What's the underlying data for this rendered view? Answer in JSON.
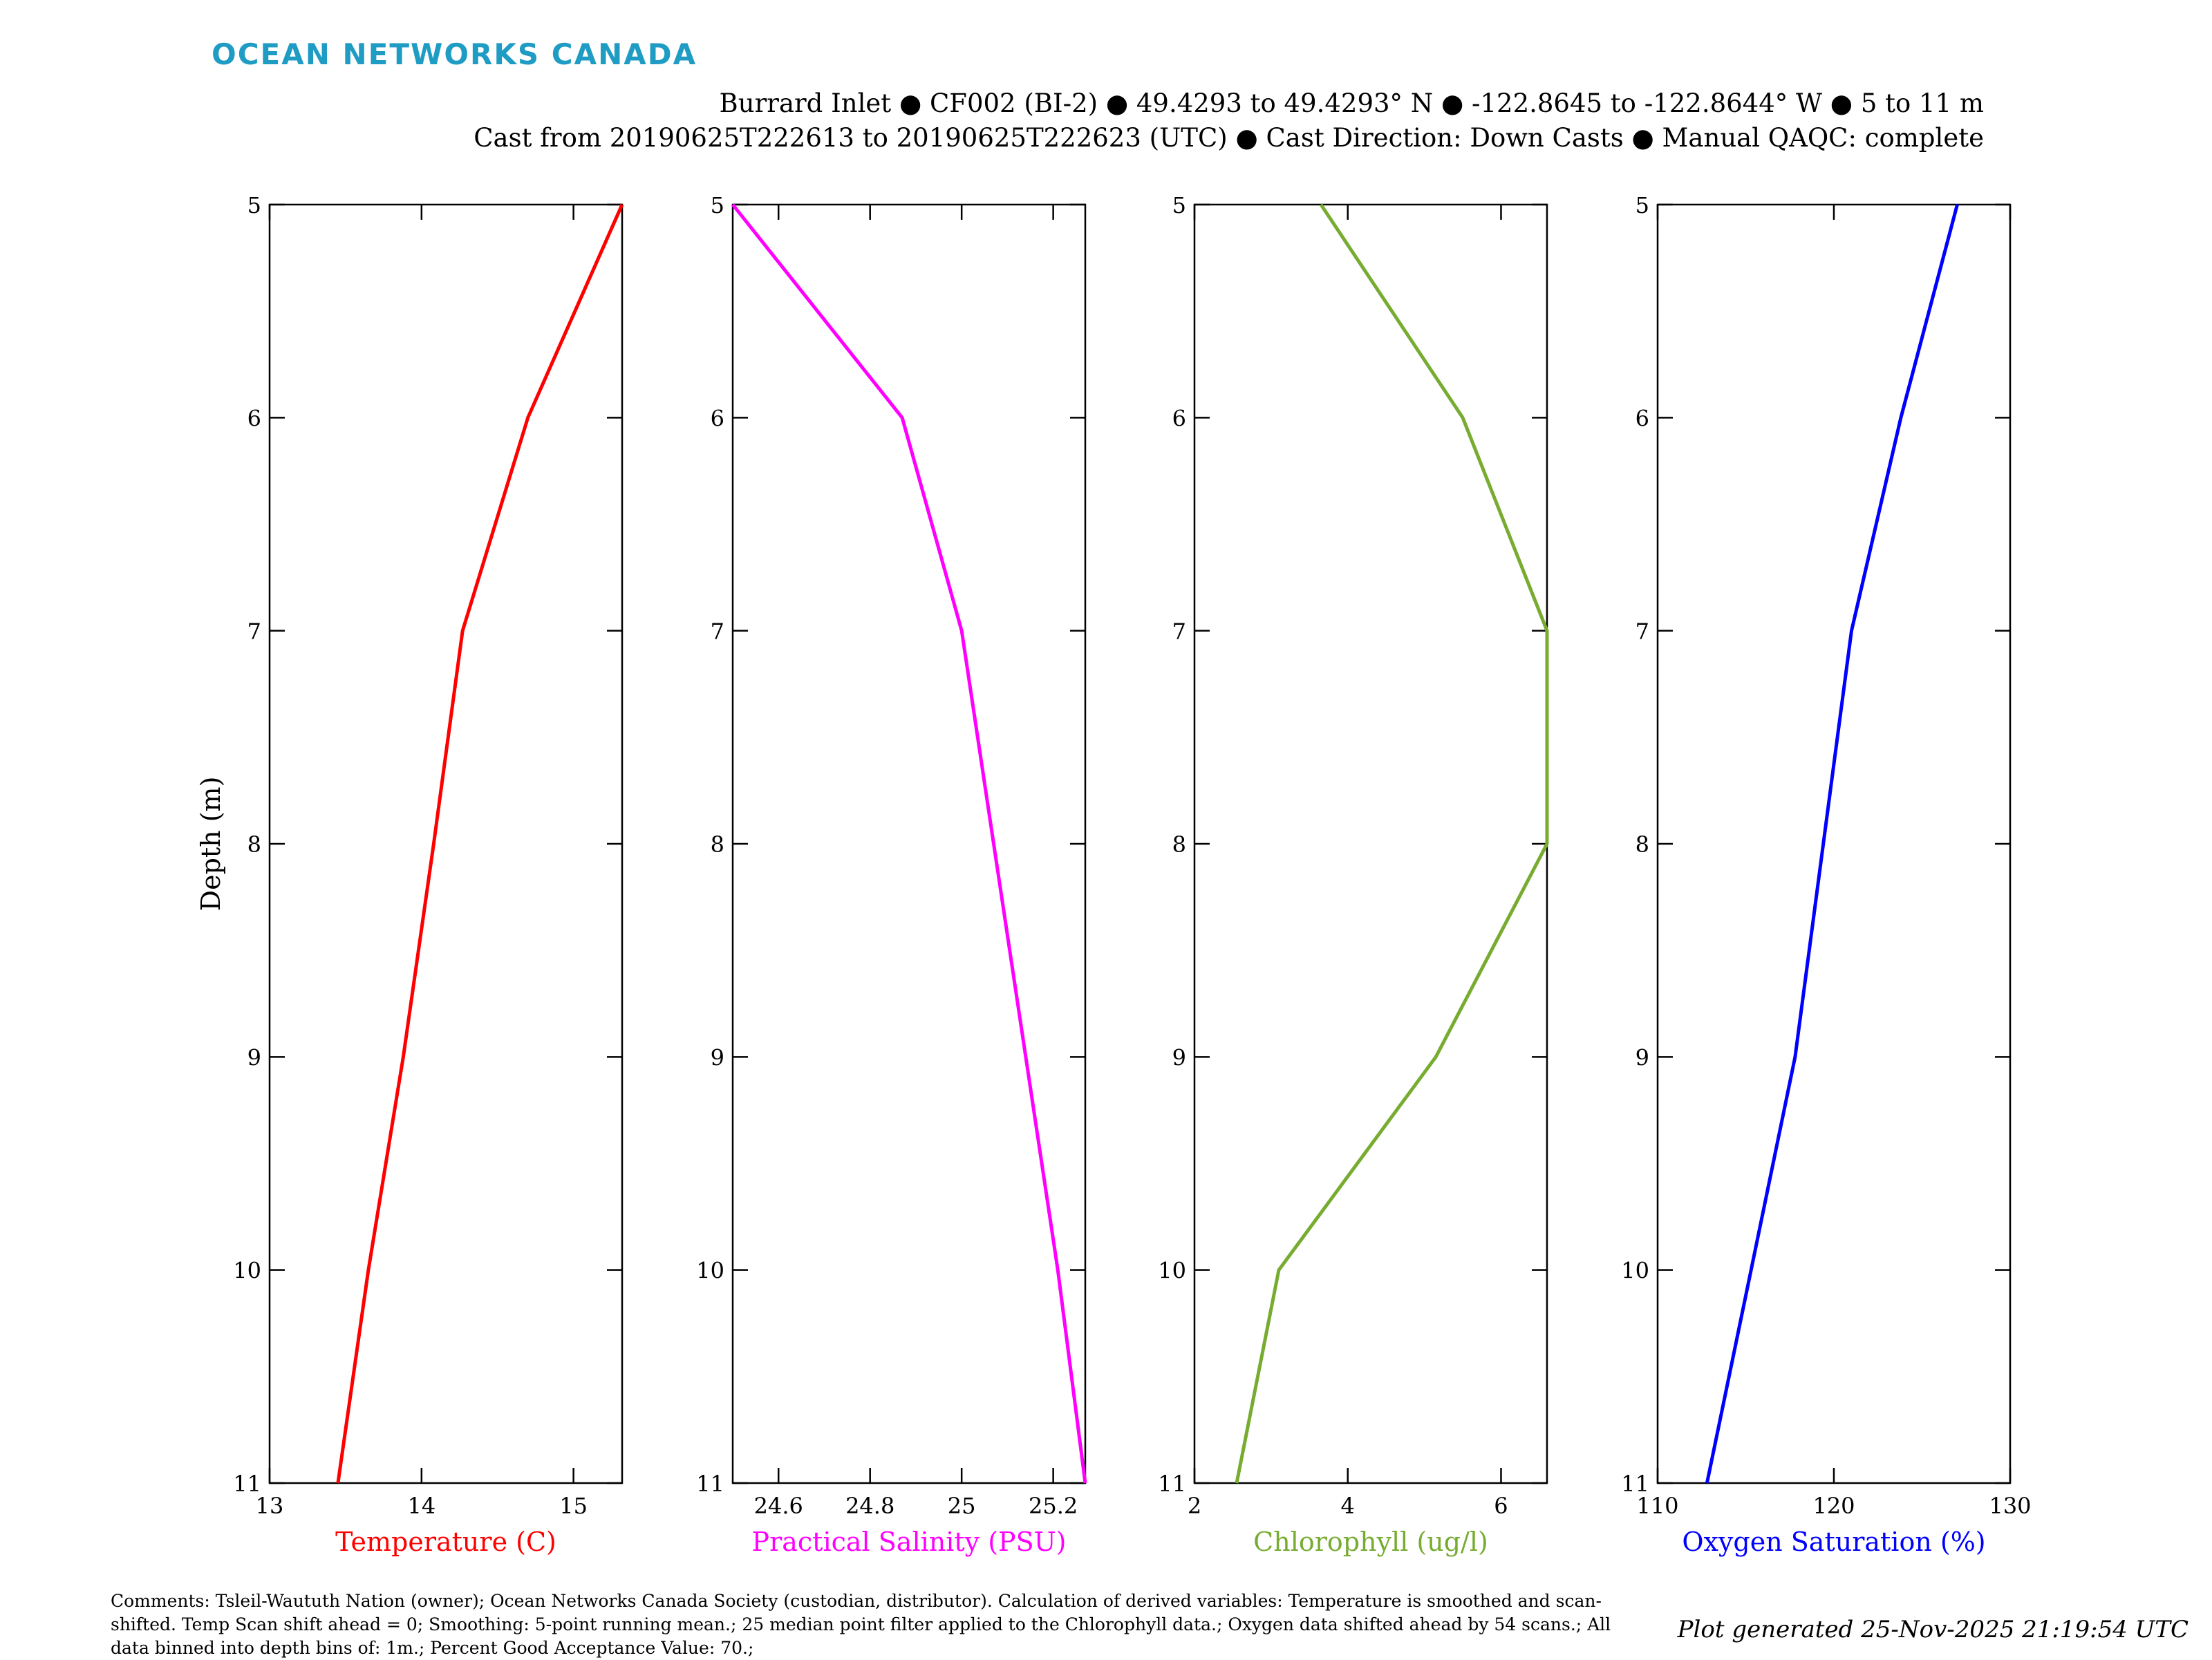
{
  "logo_text": "OCEAN NETWORKS CANADA",
  "header": {
    "line1": "Burrard Inlet ● CF002 (BI-2) ● 49.4293 to 49.4293° N ● -122.8645 to -122.8644° W ● 5 to 11 m",
    "line2": "Cast from 20190625T222613 to 20190625T222623 (UTC) ● Cast Direction: Down Casts ● Manual QAQC: complete"
  },
  "comments": "Comments: Tsleil-Waututh Nation (owner); Ocean Networks Canada Society (custodian, distributor). Calculation of derived variables: Temperature is smoothed and scan-shifted. Temp Scan shift ahead = 0; Smoothing: 5-point running mean.; 25 median point filter applied to the Chlorophyll data.; Oxygen data shifted ahead by 54 scans.; All data binned into depth bins of: 1m.; Percent Good Acceptance Value: 70.;",
  "generated": "Plot generated 25-Nov-2025 21:19:54 UTC",
  "chart_data": [
    {
      "type": "line",
      "xlabel": "Temperature (C)",
      "ylabel": "Depth (m)",
      "color": "#ff0000",
      "xlim": [
        13,
        15.32
      ],
      "xticks": [
        13,
        14,
        15
      ],
      "ylim": [
        5,
        11
      ],
      "yticks": [
        5,
        6,
        7,
        8,
        9,
        10,
        11
      ],
      "y_reversed": true,
      "x": [
        15.32,
        14.7,
        14.27,
        14.08,
        13.88,
        13.65,
        13.45
      ],
      "y": [
        5,
        6,
        7,
        8,
        9,
        10,
        11
      ]
    },
    {
      "type": "line",
      "xlabel": "Practical Salinity (PSU)",
      "ylabel": "",
      "color": "#ff00ff",
      "xlim": [
        24.5,
        25.27
      ],
      "xticks": [
        24.6,
        24.8,
        25,
        25.2
      ],
      "ylim": [
        5,
        11
      ],
      "yticks": [
        5,
        6,
        7,
        8,
        9,
        10,
        11
      ],
      "y_reversed": true,
      "x": [
        24.5,
        24.87,
        25.0,
        25.07,
        25.14,
        25.21,
        25.27
      ],
      "y": [
        5,
        6,
        7,
        8,
        9,
        10,
        11
      ]
    },
    {
      "type": "line",
      "xlabel": "Chlorophyll (ug/l)",
      "ylabel": "",
      "color": "#77ac30",
      "xlim": [
        2,
        6.6
      ],
      "xticks": [
        2,
        4,
        6
      ],
      "ylim": [
        5,
        11
      ],
      "yticks": [
        5,
        6,
        7,
        8,
        9,
        10,
        11
      ],
      "y_reversed": true,
      "x": [
        3.65,
        5.5,
        6.6,
        6.6,
        5.15,
        3.1,
        2.55
      ],
      "y": [
        5,
        6,
        7,
        8,
        9,
        10,
        11
      ]
    },
    {
      "type": "line",
      "xlabel": "Oxygen Saturation (%)",
      "ylabel": "",
      "color": "#0000ff",
      "xlim": [
        110,
        130
      ],
      "xticks": [
        110,
        120,
        130
      ],
      "ylim": [
        5,
        11
      ],
      "yticks": [
        5,
        6,
        7,
        8,
        9,
        10,
        11
      ],
      "y_reversed": true,
      "x": [
        127.0,
        123.8,
        121.0,
        119.4,
        117.8,
        115.3,
        112.8
      ],
      "y": [
        5,
        6,
        7,
        8,
        9,
        10,
        11
      ]
    }
  ]
}
